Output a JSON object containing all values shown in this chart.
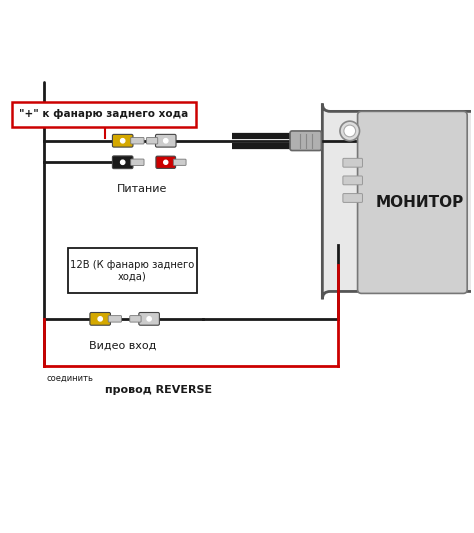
{
  "bg_color": "#ffffff",
  "line_color": "#1a1a1a",
  "red_color": "#cc0000",
  "yellow_color": "#d4a800",
  "gray_color": "#aaaaaa",
  "black_color": "#1a1a1a",
  "label_box_text": "\"+\" к фанарю заднего хода",
  "label_питание": "Питание",
  "label_12v": "12В (К фанарю заднего\nхода)",
  "label_video": "Видео вход",
  "label_soedinit": "соединить",
  "label_provod": "провод REVERSE",
  "label_monitor": "МОНИТОР",
  "figsize": [
    4.74,
    5.33
  ],
  "dpi": 100
}
